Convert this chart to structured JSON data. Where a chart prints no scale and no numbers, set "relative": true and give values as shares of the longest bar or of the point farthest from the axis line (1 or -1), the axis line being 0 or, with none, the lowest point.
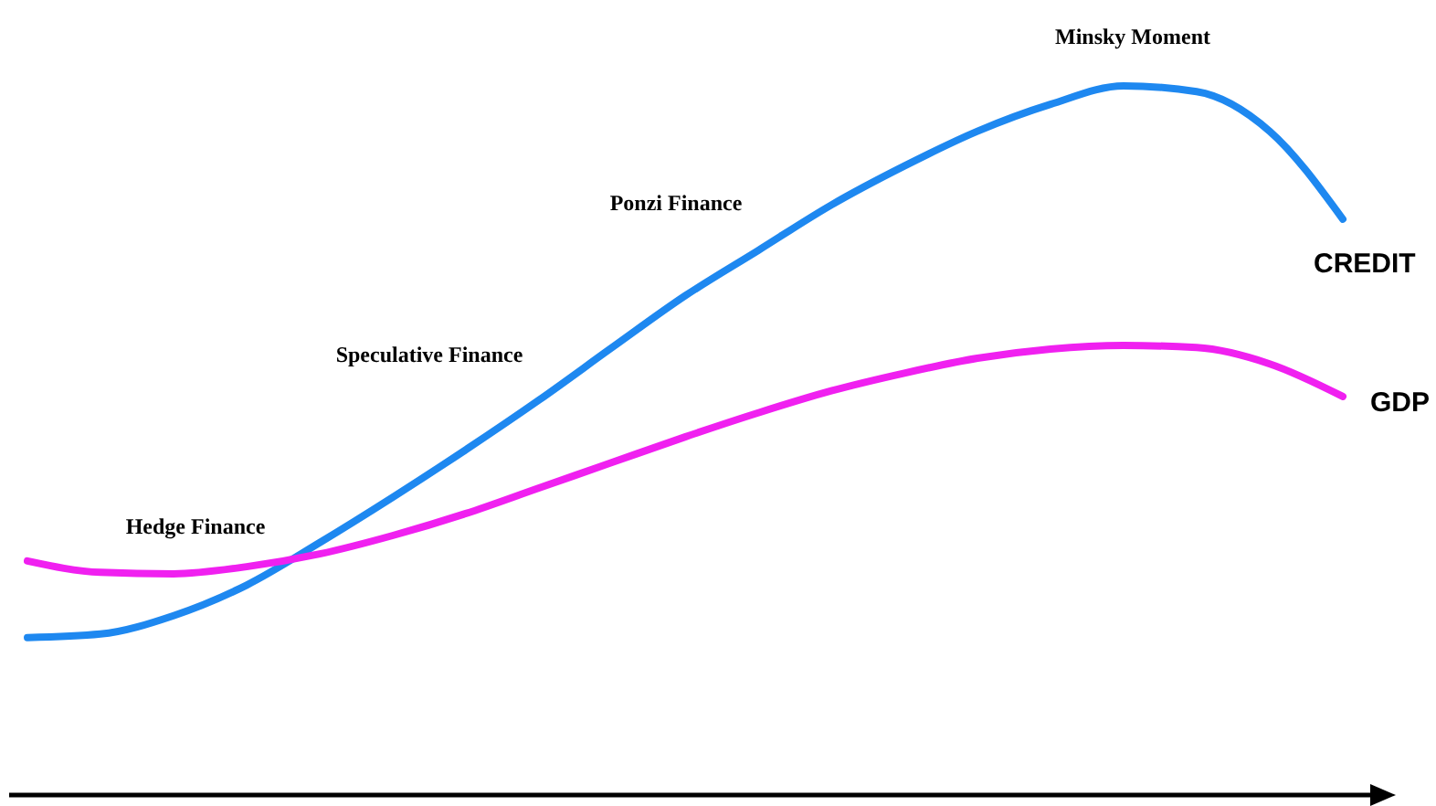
{
  "chart_data": {
    "type": "line",
    "relative": true,
    "legend": false,
    "marker": "none",
    "line_style": "solid",
    "categories": [
      null,
      null,
      null,
      null,
      null,
      null,
      null,
      null,
      null,
      null,
      null,
      null,
      null,
      null,
      null,
      null,
      null,
      null,
      null
    ],
    "series": [
      {
        "name": "CREDIT",
        "color": "#1e88f0",
        "values": [
          0.222,
          0.227,
          0.253,
          0.296,
          0.356,
          0.42,
          0.487,
          0.557,
          0.631,
          0.704,
          0.768,
          0.832,
          0.887,
          0.936,
          0.974,
          1,
          0.992,
          0.936,
          0.812
        ]
      },
      {
        "name": "GDP",
        "color": "#f020f0",
        "values": [
          0.33,
          0.314,
          0.312,
          0.322,
          0.34,
          0.366,
          0.397,
          0.433,
          0.469,
          0.505,
          0.539,
          0.57,
          0.595,
          0.616,
          0.629,
          0.634,
          0.631,
          0.608,
          0.562
        ]
      }
    ],
    "annotations": [
      "Hedge Finance",
      "Speculative Finance",
      "Ponzi Finance",
      "Minsky Moment"
    ]
  }
}
